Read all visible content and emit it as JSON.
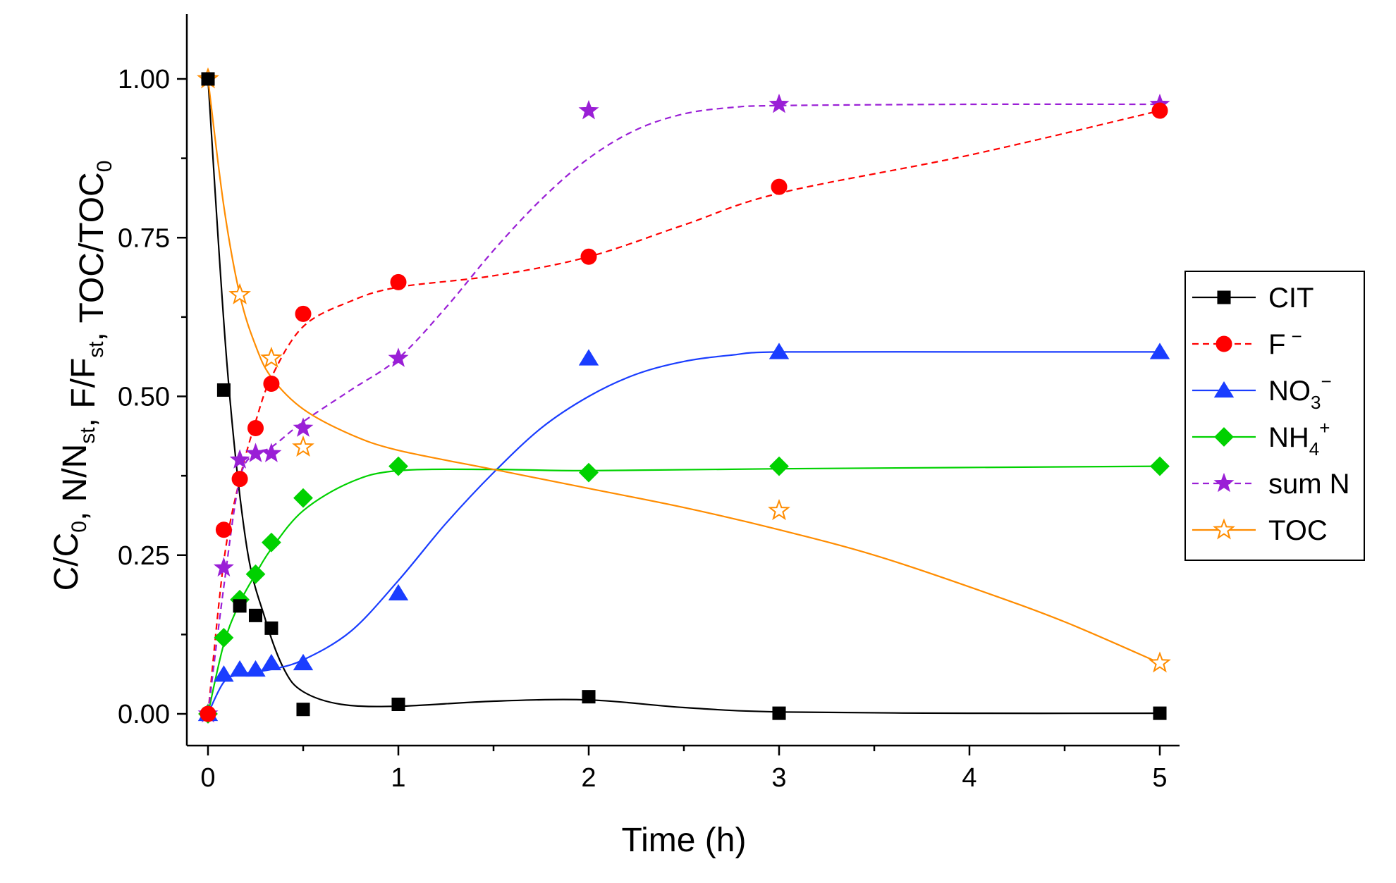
{
  "chart_data": {
    "type": "scatter",
    "title": "",
    "xlabel": "Time (h)",
    "ylabel": {
      "parts": [
        {
          "t": "C/C",
          "sub": "0"
        },
        {
          "t": ", N/N",
          "sub": "st"
        },
        {
          "t": ", F/F",
          "sub": "st"
        },
        {
          "t": ", TOC/TOC",
          "sub": "0"
        }
      ]
    },
    "xlim": [
      -0.1,
      5.1
    ],
    "ylim": [
      -0.05,
      1.1
    ],
    "xticks": [
      0,
      1,
      2,
      3,
      4,
      5
    ],
    "xtick_labels": [
      "0",
      "1",
      "2",
      "3",
      "4",
      "5"
    ],
    "yticks": [
      0,
      0.25,
      0.5,
      0.75,
      1.0
    ],
    "ytick_labels": [
      "0.00",
      "0.25",
      "0.50",
      "0.75",
      "1.00"
    ],
    "legend_position": "right",
    "series": [
      {
        "name": "CIT",
        "sup": "",
        "sub": "",
        "marker": "square",
        "filled": true,
        "color": "#000000",
        "line_style": "solid",
        "points": [
          [
            0,
            1.0
          ],
          [
            0.083,
            0.51
          ],
          [
            0.167,
            0.17
          ],
          [
            0.25,
            0.155
          ],
          [
            0.333,
            0.135
          ],
          [
            0.5,
            0.007
          ],
          [
            1,
            0.015
          ],
          [
            2,
            0.027
          ],
          [
            3,
            0.001
          ],
          [
            5,
            0.001
          ]
        ],
        "curve": [
          [
            0,
            1.0
          ],
          [
            0.1,
            0.55
          ],
          [
            0.2,
            0.27
          ],
          [
            0.3,
            0.15
          ],
          [
            0.4,
            0.07
          ],
          [
            0.5,
            0.035
          ],
          [
            0.7,
            0.015
          ],
          [
            1,
            0.012
          ],
          [
            1.5,
            0.02
          ],
          [
            2,
            0.022
          ],
          [
            2.5,
            0.01
          ],
          [
            3,
            0.003
          ],
          [
            4,
            0.001
          ],
          [
            5,
            0.001
          ]
        ]
      },
      {
        "name": "F",
        "sup": "−",
        "sub": "",
        "marker": "circle",
        "filled": true,
        "color": "#ff0000",
        "line_style": "dashed",
        "points": [
          [
            0,
            0
          ],
          [
            0.083,
            0.29
          ],
          [
            0.167,
            0.37
          ],
          [
            0.25,
            0.45
          ],
          [
            0.333,
            0.52
          ],
          [
            0.5,
            0.63
          ],
          [
            1,
            0.68
          ],
          [
            2,
            0.72
          ],
          [
            3,
            0.83
          ],
          [
            5,
            0.95
          ]
        ],
        "curve": [
          [
            0,
            0
          ],
          [
            0.083,
            0.24
          ],
          [
            0.167,
            0.37
          ],
          [
            0.25,
            0.46
          ],
          [
            0.333,
            0.53
          ],
          [
            0.5,
            0.61
          ],
          [
            0.75,
            0.65
          ],
          [
            1,
            0.672
          ],
          [
            1.5,
            0.69
          ],
          [
            2,
            0.72
          ],
          [
            2.5,
            0.77
          ],
          [
            3,
            0.82
          ],
          [
            4,
            0.88
          ],
          [
            5,
            0.95
          ]
        ]
      },
      {
        "name": "NO",
        "sup": "−",
        "sub": "3",
        "marker": "triangle",
        "filled": true,
        "color": "#1a3dff",
        "line_style": "solid",
        "points": [
          [
            0,
            0
          ],
          [
            0.083,
            0.062
          ],
          [
            0.167,
            0.07
          ],
          [
            0.25,
            0.07
          ],
          [
            0.333,
            0.08
          ],
          [
            0.5,
            0.08
          ],
          [
            1,
            0.19
          ],
          [
            2,
            0.56
          ],
          [
            3,
            0.57
          ],
          [
            5,
            0.57
          ]
        ],
        "curve": [
          [
            0,
            0
          ],
          [
            0.083,
            0.05
          ],
          [
            0.167,
            0.062
          ],
          [
            0.333,
            0.07
          ],
          [
            0.5,
            0.085
          ],
          [
            0.75,
            0.13
          ],
          [
            1,
            0.21
          ],
          [
            1.25,
            0.3
          ],
          [
            1.5,
            0.38
          ],
          [
            1.75,
            0.45
          ],
          [
            2,
            0.5
          ],
          [
            2.25,
            0.535
          ],
          [
            2.5,
            0.555
          ],
          [
            2.75,
            0.565
          ],
          [
            3,
            0.57
          ],
          [
            4,
            0.57
          ],
          [
            5,
            0.57
          ]
        ]
      },
      {
        "name": "NH",
        "sup": "+",
        "sub": "4",
        "marker": "diamond",
        "filled": true,
        "color": "#00d100",
        "line_style": "solid",
        "points": [
          [
            0,
            0
          ],
          [
            0.083,
            0.12
          ],
          [
            0.167,
            0.18
          ],
          [
            0.25,
            0.22
          ],
          [
            0.333,
            0.27
          ],
          [
            0.5,
            0.34
          ],
          [
            1,
            0.39
          ],
          [
            2,
            0.38
          ],
          [
            3,
            0.39
          ],
          [
            5,
            0.39
          ]
        ],
        "curve": [
          [
            0,
            0
          ],
          [
            0.083,
            0.11
          ],
          [
            0.167,
            0.175
          ],
          [
            0.25,
            0.22
          ],
          [
            0.333,
            0.26
          ],
          [
            0.5,
            0.32
          ],
          [
            0.75,
            0.365
          ],
          [
            1,
            0.383
          ],
          [
            1.5,
            0.385
          ],
          [
            2,
            0.383
          ],
          [
            3,
            0.386
          ],
          [
            5,
            0.39
          ]
        ]
      },
      {
        "name": "sum N",
        "sup": "",
        "sub": "",
        "marker": "star",
        "filled": true,
        "color": "#9a1fd6",
        "line_style": "dashed",
        "points": [
          [
            0,
            0
          ],
          [
            0.083,
            0.23
          ],
          [
            0.167,
            0.4
          ],
          [
            0.25,
            0.41
          ],
          [
            0.333,
            0.41
          ],
          [
            0.5,
            0.45
          ],
          [
            1,
            0.56
          ],
          [
            2,
            0.95
          ],
          [
            3,
            0.96
          ],
          [
            5,
            0.96
          ]
        ],
        "curve": [
          [
            0,
            0
          ],
          [
            0.083,
            0.2
          ],
          [
            0.167,
            0.37
          ],
          [
            0.25,
            0.41
          ],
          [
            0.333,
            0.42
          ],
          [
            0.5,
            0.46
          ],
          [
            0.75,
            0.51
          ],
          [
            1,
            0.56
          ],
          [
            1.25,
            0.64
          ],
          [
            1.5,
            0.73
          ],
          [
            1.75,
            0.81
          ],
          [
            2,
            0.875
          ],
          [
            2.25,
            0.92
          ],
          [
            2.5,
            0.945
          ],
          [
            2.75,
            0.955
          ],
          [
            3,
            0.958
          ],
          [
            4,
            0.96
          ],
          [
            5,
            0.96
          ]
        ]
      },
      {
        "name": "TOC",
        "sup": "",
        "sub": "",
        "marker": "star",
        "filled": false,
        "color": "#ff8c00",
        "line_style": "solid",
        "points": [
          [
            0,
            1.0
          ],
          [
            0.167,
            0.66
          ],
          [
            0.333,
            0.56
          ],
          [
            0.5,
            0.42
          ],
          [
            3,
            0.32
          ],
          [
            5,
            0.08
          ]
        ],
        "curve": [
          [
            0,
            1.0
          ],
          [
            0.083,
            0.8
          ],
          [
            0.167,
            0.66
          ],
          [
            0.25,
            0.58
          ],
          [
            0.333,
            0.53
          ],
          [
            0.5,
            0.48
          ],
          [
            0.75,
            0.44
          ],
          [
            1,
            0.415
          ],
          [
            1.5,
            0.385
          ],
          [
            2,
            0.355
          ],
          [
            2.5,
            0.325
          ],
          [
            3,
            0.29
          ],
          [
            3.5,
            0.25
          ],
          [
            4,
            0.2
          ],
          [
            4.5,
            0.145
          ],
          [
            5,
            0.08
          ]
        ]
      }
    ]
  }
}
